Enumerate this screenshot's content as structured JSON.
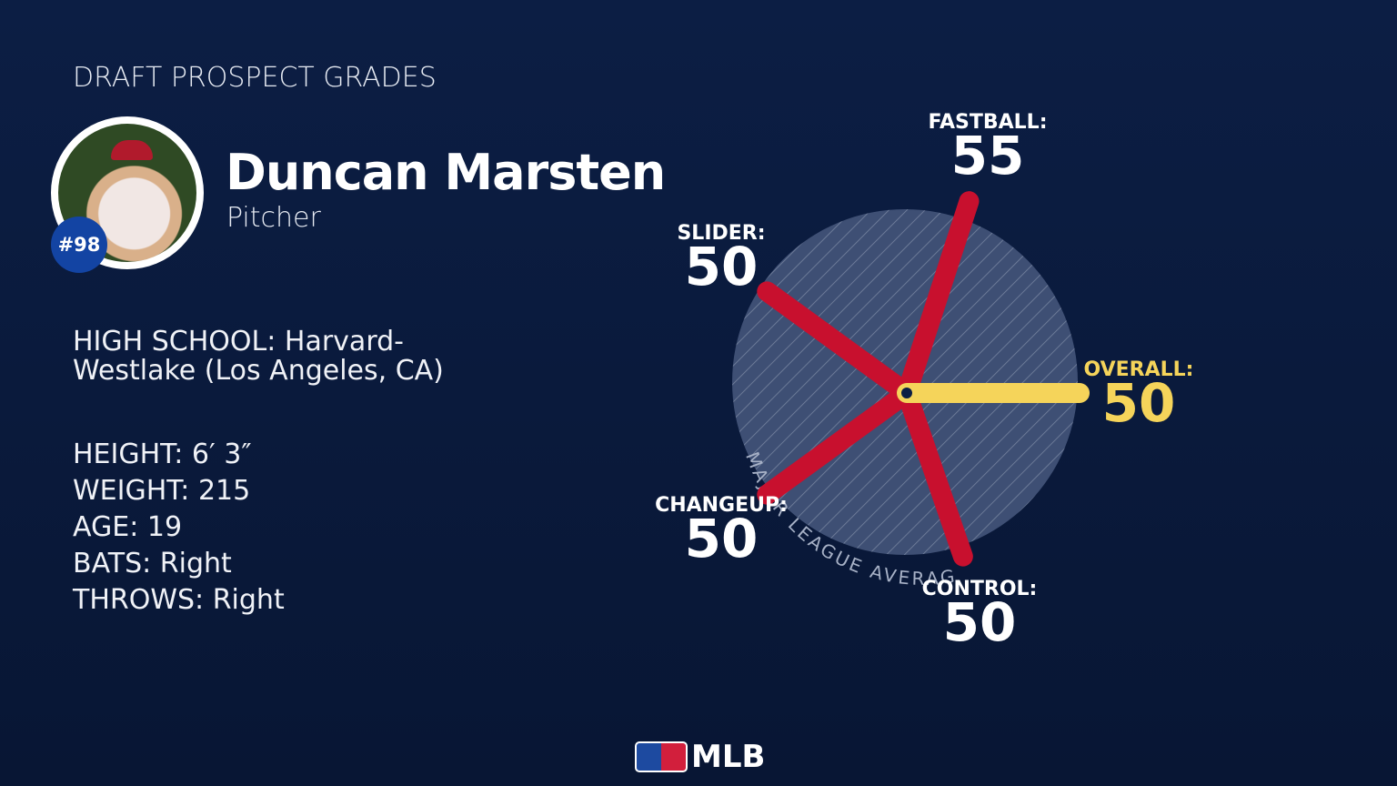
{
  "header": {
    "title": "DRAFT PROSPECT GRADES"
  },
  "player": {
    "name": "Duncan Marsten",
    "position": "Pitcher",
    "rank": "#98"
  },
  "bio": {
    "school_label": "HIGH SCHOOL:",
    "school": "Harvard-Westlake (Los Angeles, CA)",
    "rows": [
      {
        "label": "HEIGHT:",
        "value": "6′ 3″"
      },
      {
        "label": "WEIGHT:",
        "value": "215"
      },
      {
        "label": "AGE:",
        "value": "19"
      },
      {
        "label": "BATS:",
        "value": "Right"
      },
      {
        "label": "THROWS:",
        "value": "Right"
      }
    ]
  },
  "chart_data": {
    "type": "radial-bar",
    "categories": [
      "FASTBALL:",
      "SLIDER:",
      "CHANGEUP:",
      "CONTROL:",
      "OVERALL:"
    ],
    "values": [
      55,
      50,
      50,
      50,
      50
    ],
    "colors": [
      "#c8102e",
      "#c8102e",
      "#c8102e",
      "#c8102e",
      "#f5d45a"
    ],
    "rlim": [
      20,
      80
    ],
    "average": 50,
    "average_label": "MAJOR LEAGUE AVERAGE"
  },
  "footer": {
    "logo": "MLB"
  }
}
